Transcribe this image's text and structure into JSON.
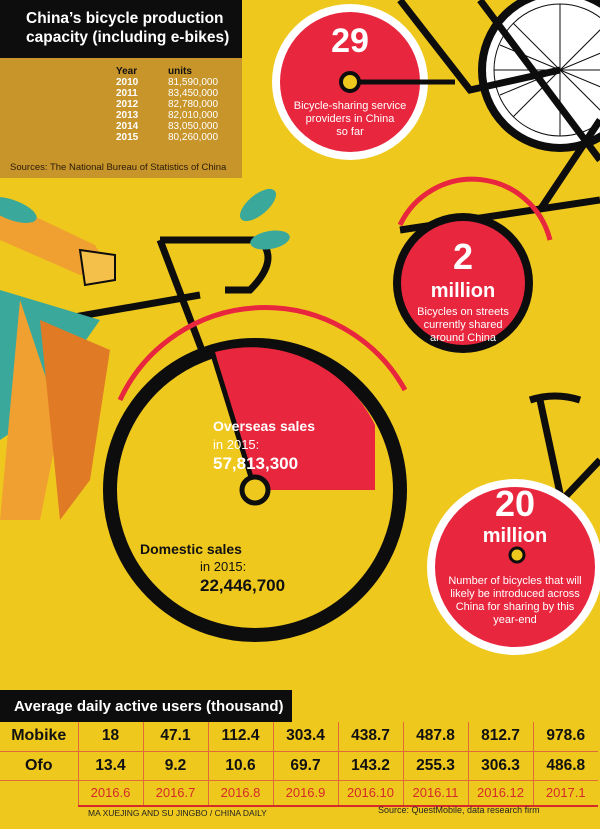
{
  "production": {
    "title_line1": "China’s bicycle production",
    "title_line2": "capacity (including e-bikes)",
    "col_year": "Year",
    "col_units": "units",
    "rows": [
      {
        "year": "2010",
        "units": "81,590,000"
      },
      {
        "year": "2011",
        "units": "83,450,000"
      },
      {
        "year": "2012",
        "units": "82,780,000"
      },
      {
        "year": "2013",
        "units": "82,010,000"
      },
      {
        "year": "2014",
        "units": "83,050,000"
      },
      {
        "year": "2015",
        "units": "80,260,000"
      }
    ],
    "source": "Sources: The National Bureau of Statistics of China"
  },
  "stats": {
    "providers": {
      "number": "29",
      "line1": "Bicycle-sharing service",
      "line2": "providers in China",
      "line3": "so far"
    },
    "shared": {
      "number": "2",
      "unit": "million",
      "line1": "Bicycles on streets",
      "line2": "currently shared",
      "line3": "around China"
    },
    "future": {
      "number": "20",
      "unit": "million",
      "line1": "Number of bicycles that will",
      "line2": "likely be introduced across",
      "line3": "China for sharing by this",
      "line4": "year-end"
    }
  },
  "colors": {
    "background": "#efc81e",
    "red": "#e8263e",
    "black": "#0d0d0d",
    "tan": "#c8952b",
    "date_red": "#d42a2a"
  },
  "chart_data": [
    {
      "type": "pie",
      "slices": [
        {
          "label": "Overseas sales",
          "sublabel": "in 2015:",
          "value": 57813300,
          "value_text": "57,813,300",
          "color": "#e8263e"
        },
        {
          "label": "Domestic sales",
          "sublabel": "in 2015:",
          "value": 22446700,
          "value_text": "22,446,700",
          "color": "#efc81e"
        }
      ]
    },
    {
      "type": "table",
      "title": "Average daily active users (thousand)",
      "categories": [
        "2016.6",
        "2016.7",
        "2016.8",
        "2016.9",
        "2016.10",
        "2016.11",
        "2016.12",
        "2017.1"
      ],
      "series": [
        {
          "name": "Mobike",
          "values": [
            "18",
            "47.1",
            "112.4",
            "303.4",
            "438.7",
            "487.8",
            "812.7",
            "978.6"
          ]
        },
        {
          "name": "Ofo",
          "values": [
            "13.4",
            "9.2",
            "10.6",
            "69.7",
            "143.2",
            "255.3",
            "306.3",
            "486.8"
          ]
        }
      ],
      "credit": "MA XUEJING AND SU JINGBO / CHINA DAILY",
      "source": "Source:  QuestMobile, data research firm"
    }
  ]
}
